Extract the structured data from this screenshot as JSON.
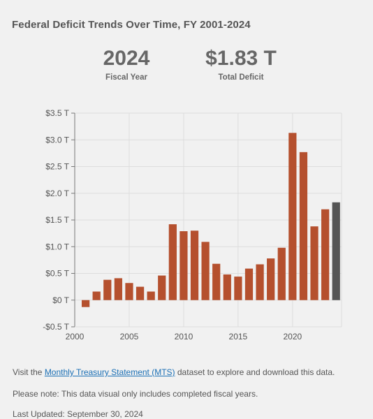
{
  "title": "Federal Deficit Trends Over Time, FY 2001-2024",
  "stats": {
    "year_value": "2024",
    "year_label": "Fiscal Year",
    "total_value": "$1.83 T",
    "total_label": "Total Deficit"
  },
  "chart_data": {
    "type": "bar",
    "categories": [
      2001,
      2002,
      2003,
      2004,
      2005,
      2006,
      2007,
      2008,
      2009,
      2010,
      2011,
      2012,
      2013,
      2014,
      2015,
      2016,
      2017,
      2018,
      2019,
      2020,
      2021,
      2022,
      2023,
      2024
    ],
    "values": [
      -0.13,
      0.16,
      0.38,
      0.41,
      0.32,
      0.25,
      0.16,
      0.46,
      1.42,
      1.29,
      1.3,
      1.09,
      0.68,
      0.48,
      0.44,
      0.59,
      0.67,
      0.78,
      0.98,
      3.13,
      2.77,
      1.38,
      1.7,
      1.83
    ],
    "highlight": 2024,
    "colors": {
      "bar": "#b5502e",
      "highlight": "#555555",
      "grid": "#dddddd",
      "axis": "#777777"
    },
    "ylim": [
      -0.5,
      3.5
    ],
    "yticks": [
      -0.5,
      0,
      0.5,
      1.0,
      1.5,
      2.0,
      2.5,
      3.0,
      3.5
    ],
    "ytick_labels": [
      "-$0.5 T",
      "$0 T",
      "$0.5 T",
      "$1.0 T",
      "$1.5 T",
      "$2.0 T",
      "$2.5 T",
      "$3.0 T",
      "$3.5 T"
    ],
    "xlim": [
      2000,
      2024.5
    ],
    "xticks": [
      2000,
      2005,
      2010,
      2015,
      2020
    ],
    "xtick_labels": [
      "2000",
      "2005",
      "2010",
      "2015",
      "2020"
    ],
    "grid": true
  },
  "footer": {
    "line1_prefix": "Visit the ",
    "line1_link": "Monthly Treasury Statement (MTS)",
    "line1_suffix": " dataset to explore and download this data.",
    "line2": "Please note: This data visual only includes completed fiscal years.",
    "line3": "Last Updated: September 30, 2024"
  }
}
